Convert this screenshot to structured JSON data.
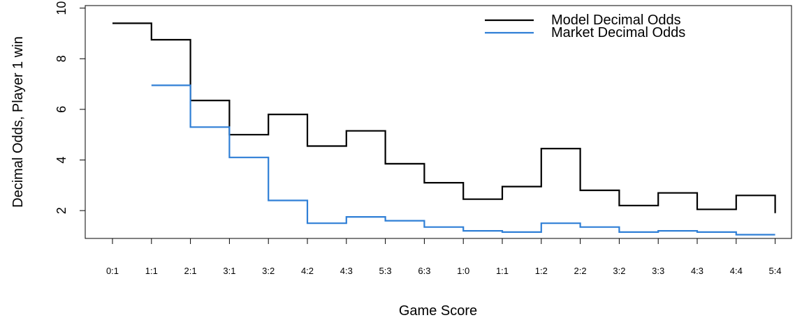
{
  "chart_data": {
    "type": "line",
    "step": true,
    "title": "",
    "xlabel": "Game Score",
    "ylabel": "Decimal Odds, Player 1 win",
    "categories": [
      "0:1",
      "1:1",
      "2:1",
      "3:1",
      "3:2",
      "4:2",
      "4:3",
      "5:3",
      "6:3",
      "1:0",
      "1:1",
      "1:2",
      "2:2",
      "3:2",
      "3:3",
      "4:3",
      "4:4",
      "5:4"
    ],
    "yticks": [
      2,
      4,
      6,
      8,
      10
    ],
    "ylim": [
      0.9,
      10.1
    ],
    "grid": false,
    "legend_position": "top-right",
    "series": [
      {
        "name": "Model Decimal Odds",
        "color": "#000000",
        "values": [
          9.4,
          8.75,
          6.35,
          5.0,
          5.8,
          4.55,
          5.15,
          3.85,
          3.1,
          2.45,
          2.95,
          4.45,
          2.8,
          2.2,
          2.7,
          2.05,
          2.6,
          1.9
        ]
      },
      {
        "name": "Market Decimal Odds",
        "color": "#2f7fd6",
        "values": [
          null,
          6.95,
          5.3,
          4.1,
          2.4,
          1.5,
          1.75,
          1.6,
          1.35,
          1.2,
          1.15,
          1.5,
          1.35,
          1.15,
          1.2,
          1.15,
          1.05,
          1.05
        ]
      }
    ]
  }
}
